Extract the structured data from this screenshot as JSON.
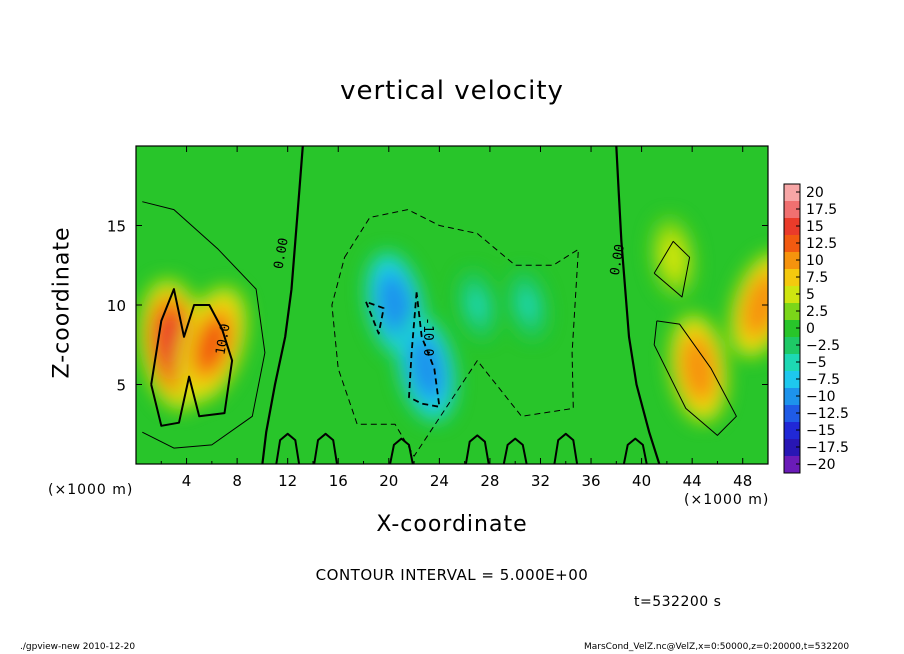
{
  "chart_data": {
    "type": "heatmap",
    "title": "vertical velocity",
    "xlabel": "X-coordinate",
    "ylabel": "Z-coordinate",
    "xunit": "(×1000 m)",
    "xlim": [
      0,
      50
    ],
    "ylim": [
      0,
      20
    ],
    "xticks": [
      4,
      8,
      12,
      16,
      20,
      24,
      28,
      32,
      36,
      40,
      44,
      48
    ],
    "yticks": [
      5,
      10,
      15
    ],
    "colorbar": {
      "labels": [
        "20",
        "17.5",
        "15",
        "12.5",
        "10",
        "7.5",
        "5",
        "2.5",
        "0",
        "−2.5",
        "−5",
        "−7.5",
        "−10",
        "−12.5",
        "−15",
        "−17.5",
        "−20"
      ],
      "colors": [
        "#f7a6a6",
        "#f07070",
        "#ea3b2a",
        "#f25a10",
        "#f6930d",
        "#f4c90e",
        "#cfe510",
        "#7bd619",
        "#28c52a",
        "#1ec966",
        "#1dd8b4",
        "#1ec8ee",
        "#1d93ec",
        "#1f5be6",
        "#2028d6",
        "#2816b4",
        "#6a1bb8"
      ]
    },
    "contour_labels": [
      {
        "text": "0.00",
        "x": 11.8,
        "y": 13.2
      },
      {
        "text": "0.00",
        "x": 38.4,
        "y": 12.8
      },
      {
        "text": "10.0",
        "x": 7.2,
        "y": 7.8
      },
      {
        "text": "-10.0",
        "x": 22.8,
        "y": 8.0
      }
    ],
    "contour_interval": "CONTOUR INTERVAL = 5.000E+00",
    "time": "t=532200 s",
    "features": [
      {
        "sign": "positive",
        "cx": 3,
        "cz": 7.5,
        "amplitude": 15
      },
      {
        "sign": "positive",
        "cx": 6,
        "cz": 7.5,
        "amplitude": 13
      },
      {
        "sign": "positive",
        "cx": 44.5,
        "cz": 6,
        "amplitude": 11
      },
      {
        "sign": "positive",
        "cx": 49.5,
        "cz": 10,
        "amplitude": 11
      },
      {
        "sign": "positive",
        "cx": 42.5,
        "cz": 13,
        "amplitude": 6
      },
      {
        "sign": "negative",
        "cx": 20.5,
        "cz": 10,
        "amplitude": -11
      },
      {
        "sign": "negative",
        "cx": 23,
        "cz": 6,
        "amplitude": -11
      },
      {
        "sign": "negative",
        "cx": 27,
        "cz": 10,
        "amplitude": -4
      },
      {
        "sign": "negative",
        "cx": 31,
        "cz": 10,
        "amplitude": -4
      }
    ]
  },
  "footer": {
    "left": "./gpview-new  2010-12-20",
    "right": "MarsCond_VelZ.nc@VelZ,x=0:50000,z=0:20000,t=532200"
  }
}
